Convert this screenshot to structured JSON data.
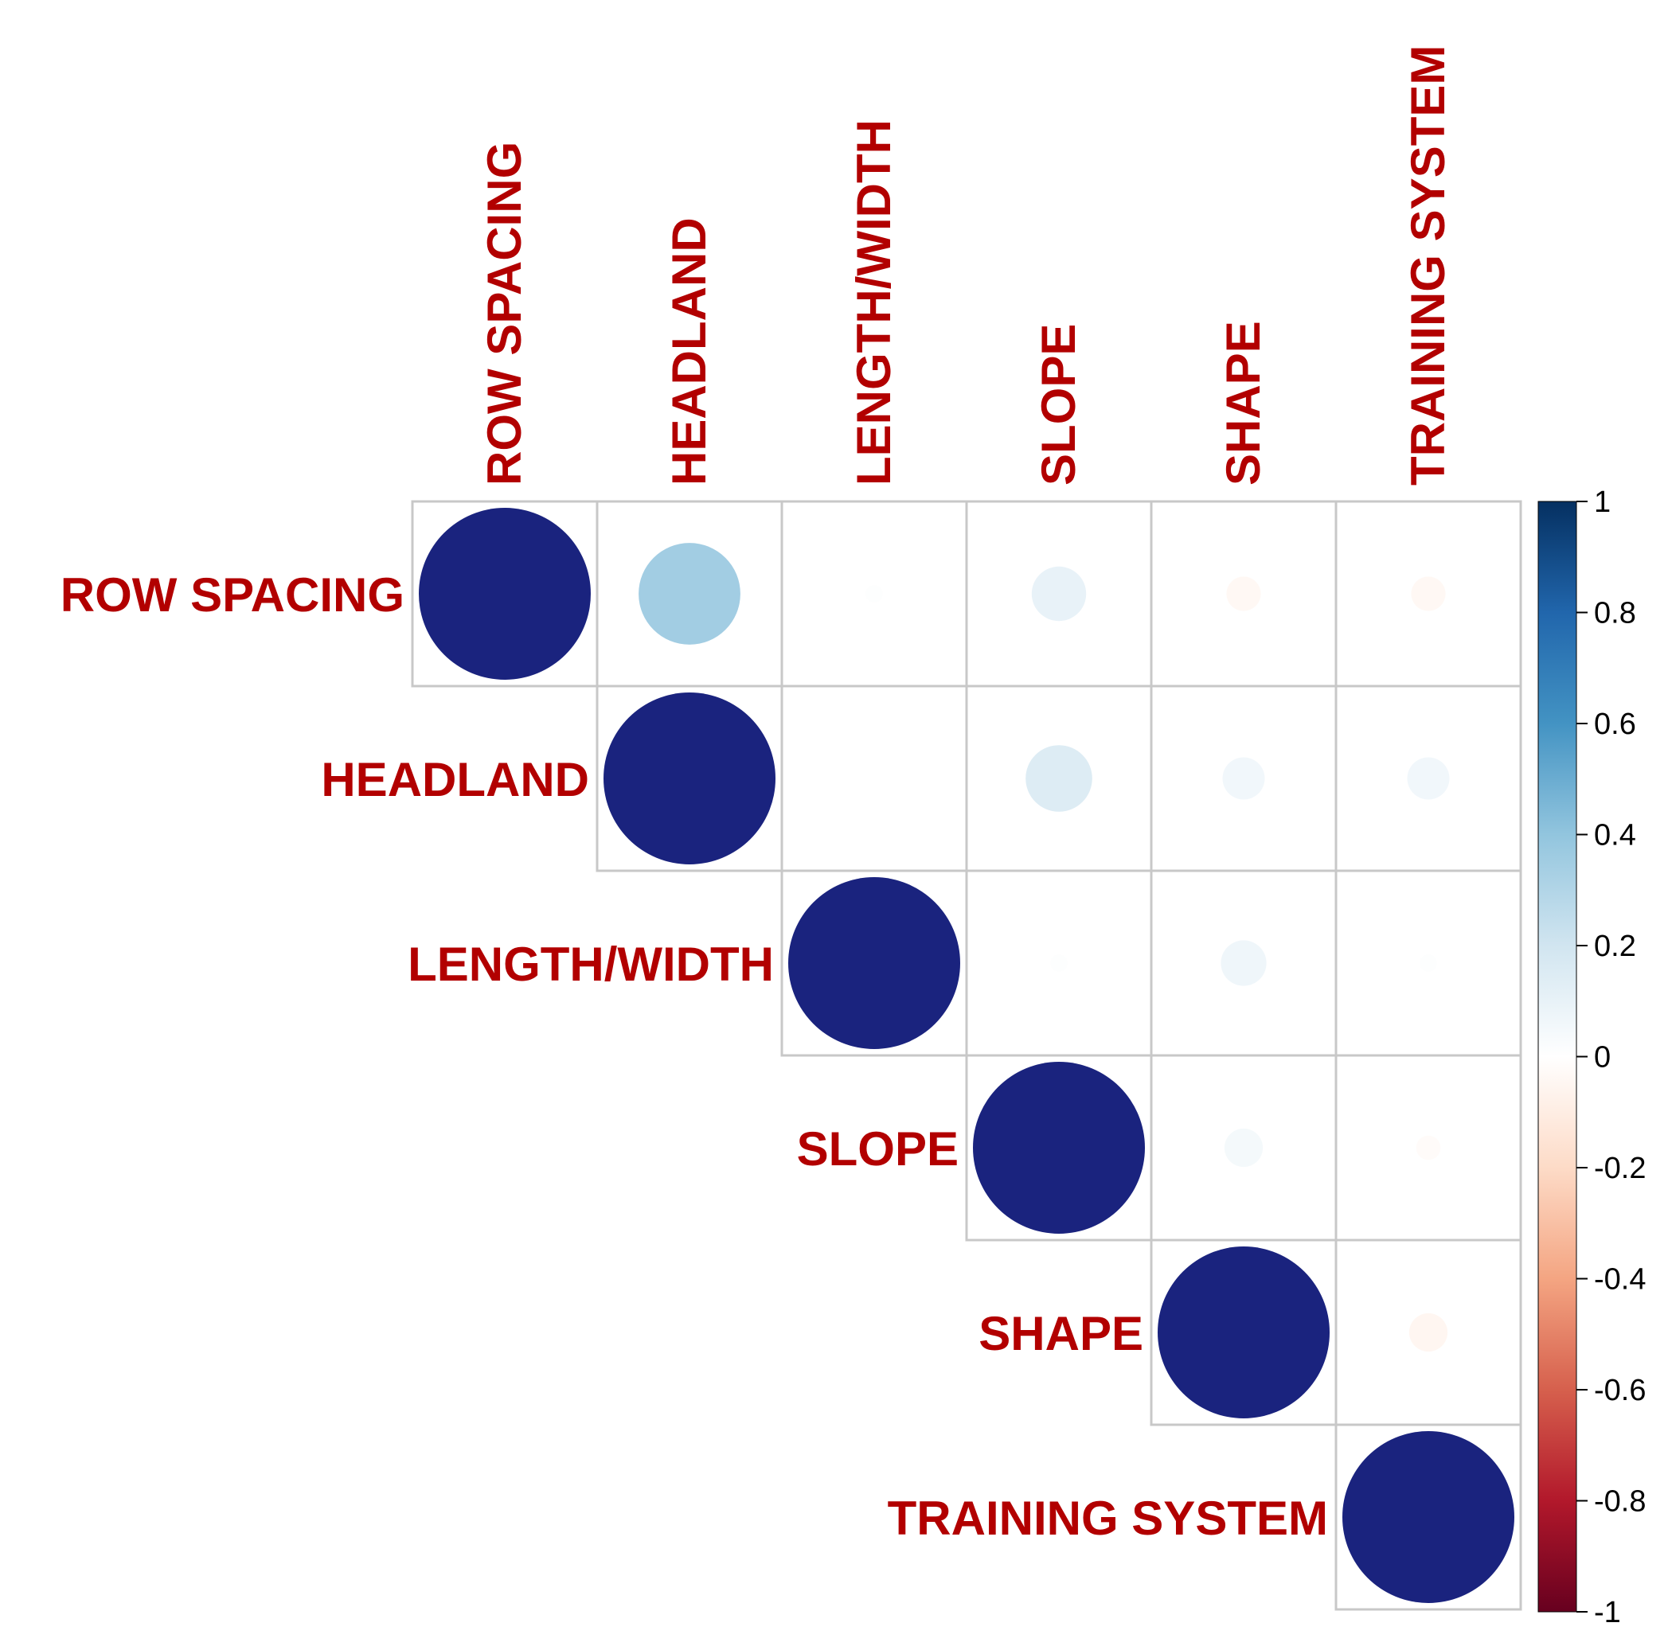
{
  "chart_data": {
    "type": "heatmap",
    "subtype": "correlation-circle-upper-triangle",
    "title": "",
    "variables": [
      "ROW SPACING",
      "HEADLAND",
      "LENGTH/WIDTH",
      "SLOPE",
      "SHAPE",
      "TRAINING SYSTEM"
    ],
    "matrix": [
      [
        1.0,
        0.35,
        0.01,
        0.1,
        -0.04,
        -0.04
      ],
      [
        null,
        1.0,
        0.0,
        0.15,
        0.06,
        0.06
      ],
      [
        null,
        null,
        1.0,
        0.01,
        0.07,
        0.01
      ],
      [
        null,
        null,
        null,
        1.0,
        0.05,
        -0.02
      ],
      [
        null,
        null,
        null,
        null,
        1.0,
        -0.05
      ],
      [
        null,
        null,
        null,
        null,
        null,
        1.0
      ]
    ],
    "legend": {
      "placement": "right",
      "range": [
        -1,
        1
      ],
      "ticks": [
        "1",
        "0.8",
        "0.6",
        "0.4",
        "0.2",
        "0",
        "-0.2",
        "-0.4",
        "-0.6",
        "-0.8",
        "-1"
      ],
      "tick_values": [
        1,
        0.8,
        0.6,
        0.4,
        0.2,
        0,
        -0.2,
        -0.4,
        -0.6,
        -0.8,
        -1
      ]
    },
    "colors": {
      "label": "#B20000",
      "grid": "#C8C8C8",
      "strong_positive_circle": "#1A237E",
      "scale": [
        "#67001F",
        "#B2182B",
        "#D6604D",
        "#F4A582",
        "#FDDBC7",
        "#FFFFFF",
        "#D1E5F0",
        "#92C5DE",
        "#4393C3",
        "#2166AC",
        "#053061"
      ]
    }
  }
}
